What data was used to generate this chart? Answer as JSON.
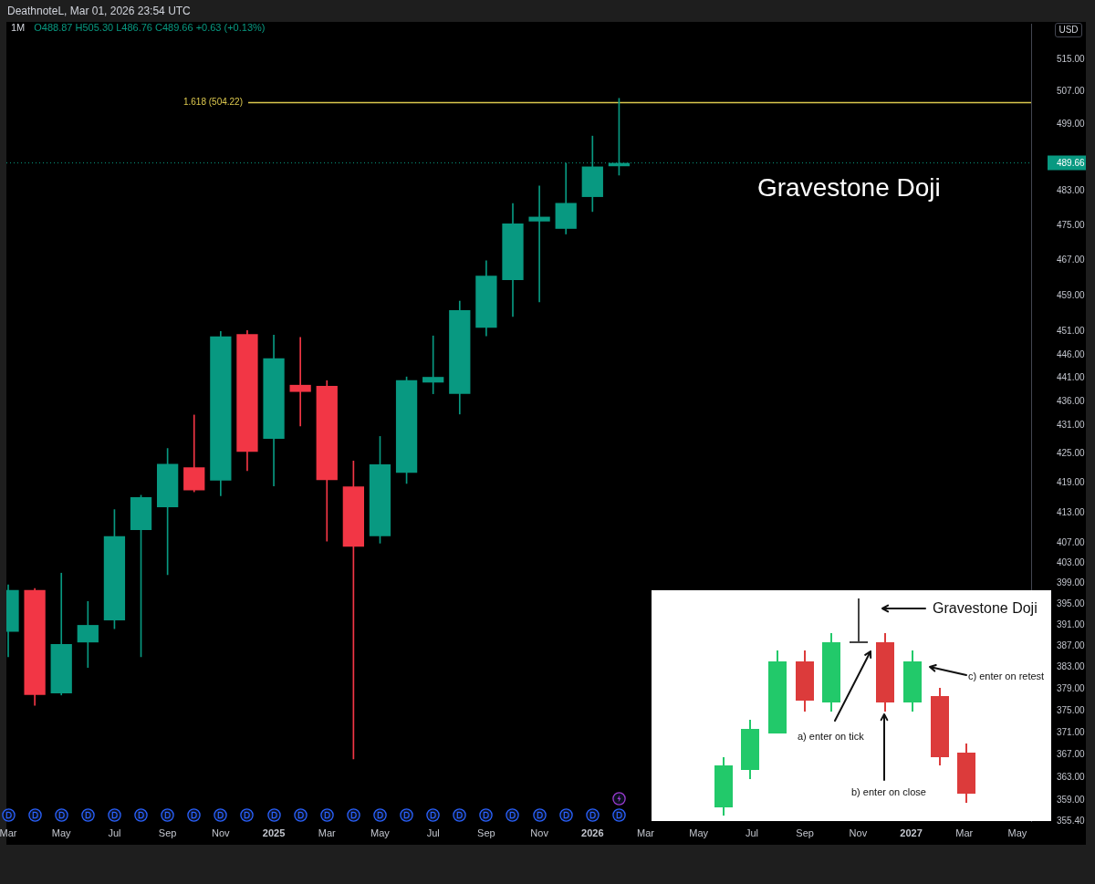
{
  "chart_data": {
    "type": "candlestick",
    "title": "1M",
    "subtitle": "O488.87 H505.30 L486.76 C489.66 +0.63 (+0.13%)",
    "ylabel": "USD",
    "annotations": [
      "DeathnoteL, Mar 01, 2026 23:54 UTC",
      "Gravestone Doji",
      "Gravestone Doji",
      "c) enter on retest",
      "a) enter on tick",
      "b) enter on close"
    ],
    "x": [
      "2024-03",
      "2024-04",
      "2024-05",
      "2024-06",
      "2024-07",
      "2024-08",
      "2024-09",
      "2024-10",
      "2024-11",
      "2024-12",
      "2025-01",
      "2025-02",
      "2025-03",
      "2025-04",
      "2025-05",
      "2025-06",
      "2025-07",
      "2025-08",
      "2025-09",
      "2025-10",
      "2025-11",
      "2025-12",
      "2026-01",
      "2026-02"
    ],
    "ohlc": [
      [
        389.7,
        398.7,
        385.0,
        397.7
      ],
      [
        397.7,
        398.0,
        376.0,
        377.9
      ],
      [
        378.2,
        401.0,
        377.9,
        387.4
      ],
      [
        387.7,
        395.5,
        383.0,
        391.0
      ],
      [
        391.9,
        413.6,
        390.3,
        408.3
      ],
      [
        409.5,
        416.5,
        385.0,
        416.1
      ],
      [
        414.1,
        426.1,
        400.7,
        422.9
      ],
      [
        422.2,
        433.1,
        417.2,
        417.5
      ],
      [
        419.5,
        451.1,
        416.4,
        450.0
      ],
      [
        450.5,
        451.3,
        421.5,
        425.4
      ],
      [
        428.1,
        450.3,
        418.4,
        445.2
      ],
      [
        439.5,
        449.8,
        430.8,
        438.0
      ],
      [
        439.3,
        440.4,
        407.3,
        419.6
      ],
      [
        418.3,
        423.5,
        366.3,
        406.2
      ],
      [
        408.3,
        428.6,
        406.9,
        422.8
      ],
      [
        421.1,
        441.2,
        418.9,
        440.5
      ],
      [
        440.0,
        450.1,
        437.6,
        441.2
      ],
      [
        437.6,
        457.8,
        433.3,
        455.8
      ],
      [
        451.9,
        466.9,
        450.1,
        463.5
      ],
      [
        462.5,
        480.1,
        454.4,
        475.4
      ],
      [
        475.9,
        484.2,
        457.6,
        477.0
      ],
      [
        474.2,
        489.6,
        473.0,
        480.2
      ],
      [
        481.6,
        496.1,
        478.2,
        488.8
      ],
      [
        488.87,
        505.3,
        486.76,
        489.66
      ]
    ],
    "colors": [
      "#089981",
      "#f23645",
      "#089981",
      "#089981",
      "#089981",
      "#089981",
      "#089981",
      "#f23645",
      "#089981",
      "#f23645",
      "#089981",
      "#f23645",
      "#f23645",
      "#f23645",
      "#089981",
      "#089981",
      "#089981",
      "#089981",
      "#089981",
      "#089981",
      "#089981",
      "#089981",
      "#089981",
      "#089981"
    ],
    "xlim": [
      "2024-02-28",
      "2027-05-17"
    ],
    "xticks": [
      {
        "value": "2024-03",
        "label": "Mar"
      },
      {
        "value": "2024-05",
        "label": "May"
      },
      {
        "value": "2024-07",
        "label": "Jul"
      },
      {
        "value": "2024-09",
        "label": "Sep"
      },
      {
        "value": "2024-11",
        "label": "Nov"
      },
      "2025",
      {
        "value": "2025-03",
        "label": "Mar"
      },
      {
        "value": "2025-05",
        "label": "May"
      },
      {
        "value": "2025-07",
        "label": "Jul"
      },
      {
        "value": "2025-09",
        "label": "Sep"
      },
      {
        "value": "2025-11",
        "label": "Nov"
      },
      "2026",
      {
        "value": "2026-03",
        "label": "Mar"
      },
      {
        "value": "2026-05",
        "label": "May"
      },
      {
        "value": "2026-07",
        "label": "Jul"
      },
      {
        "value": "2026-09",
        "label": "Sep"
      },
      {
        "value": "2026-11",
        "label": "Nov"
      },
      "2027",
      {
        "value": "2027-03",
        "label": "Mar"
      },
      {
        "value": "2027-05",
        "label": "May"
      }
    ],
    "ylim": [
      355.4,
      524
    ],
    "yticks": [
      {
        "value": 355.4,
        "label": "355.40"
      },
      {
        "value": 359,
        "label": "359.00"
      },
      {
        "value": 363,
        "label": "363.00"
      },
      {
        "value": 367,
        "label": "367.00"
      },
      {
        "value": 371,
        "label": "371.00"
      },
      {
        "value": 375,
        "label": "375.00"
      },
      {
        "value": 379,
        "label": "379.00"
      },
      {
        "value": 383,
        "label": "383.00"
      },
      {
        "value": 387,
        "label": "387.00"
      },
      {
        "value": 391,
        "label": "391.00"
      },
      {
        "value": 395,
        "label": "395.00"
      },
      {
        "value": 399,
        "label": "399.00"
      },
      {
        "value": 403,
        "label": "403.00"
      },
      {
        "value": 407,
        "label": "407.00"
      },
      {
        "value": 413,
        "label": "413.00"
      },
      {
        "value": 419,
        "label": "419.00"
      },
      {
        "value": 425,
        "label": "425.00"
      },
      {
        "value": 431,
        "label": "431.00"
      },
      {
        "value": 436,
        "label": "436.00"
      },
      {
        "value": 441,
        "label": "441.00"
      },
      {
        "value": 446,
        "label": "446.00"
      },
      {
        "value": 451,
        "label": "451.00"
      },
      {
        "value": 459,
        "label": "459.00"
      },
      {
        "value": 467,
        "label": "467.00"
      },
      {
        "value": 475,
        "label": "475.00"
      },
      {
        "value": 483,
        "label": "483.00"
      },
      {
        "value": 499,
        "label": "499.00"
      },
      {
        "value": 507,
        "label": "507.00"
      },
      {
        "value": 515,
        "label": "515.00"
      }
    ],
    "log": true,
    "ref_lines": [
      {
        "axis": "y",
        "value": 504.22,
        "label": "1.618 (504.22)",
        "color": "#dcc84e"
      },
      {
        "axis": "y",
        "value": 489.66,
        "label": "489.66",
        "color": "#089981",
        "line_style": "dotted"
      }
    ]
  }
}
